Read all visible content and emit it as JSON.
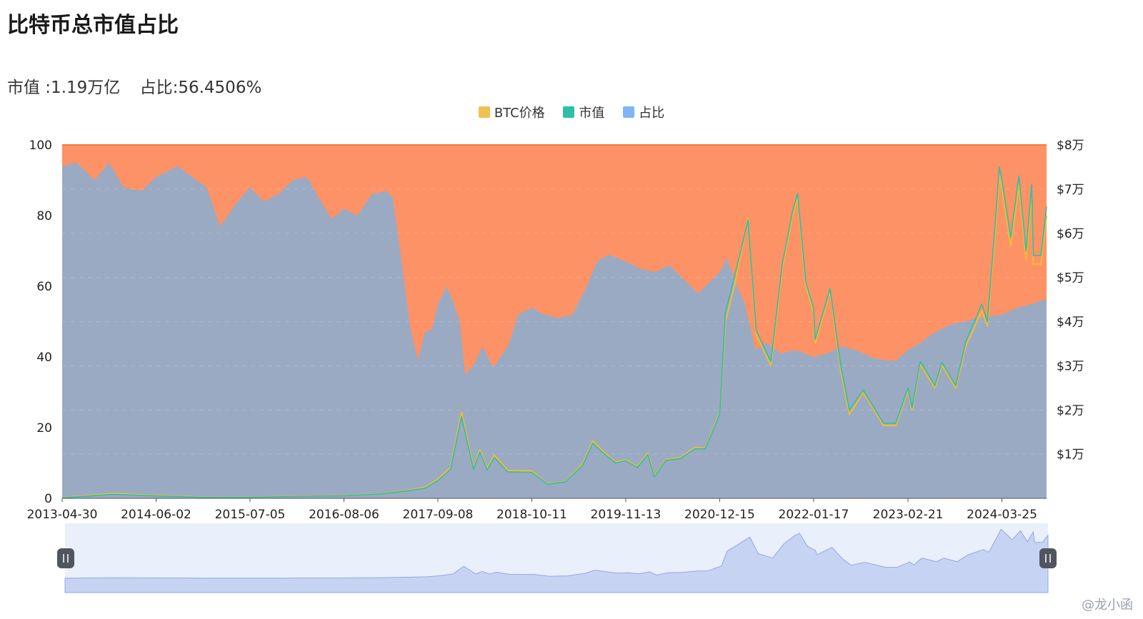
{
  "header": {
    "title": "比特币总市值占比",
    "market_cap": "市值 :1.19万亿",
    "dominance": "占比:56.4506%"
  },
  "legend": [
    {
      "label": "BTC价格",
      "color": "#f0c050"
    },
    {
      "label": "市值",
      "color": "#2fbfa8"
    },
    {
      "label": "占比",
      "color": "#7eb6f5"
    }
  ],
  "colors": {
    "dominance_fill": "#9aaac2",
    "remainder_fill": "#fd9266",
    "top_line": "#f47a3f",
    "price": "#f0b93a",
    "market_cap": "#2fbfa8",
    "slider_bg": "#e9effb",
    "slider_fill": "#c7d3f3",
    "slider_line": "#93a8e3"
  },
  "chart_data": {
    "type": "area",
    "x_ticks": [
      "2013-04-30",
      "2014-06-02",
      "2015-07-05",
      "2016-08-06",
      "2017-09-08",
      "2018-10-11",
      "2019-11-13",
      "2020-12-15",
      "2022-01-17",
      "2023-02-21",
      "2024-03-25"
    ],
    "y_left_ticks": [
      "0",
      "20",
      "40",
      "60",
      "80",
      "100"
    ],
    "y_left_range": [
      0,
      100
    ],
    "y_right_ticks": [
      "$1万",
      "$2万",
      "$3万",
      "$4万",
      "$5万",
      "$6万",
      "$7万",
      "$8万"
    ],
    "y_right_range": [
      0,
      80000
    ],
    "series": [
      {
        "name": "占比",
        "axis": "left",
        "points": [
          [
            "2013-04-30",
            94
          ],
          [
            "2013-07-01",
            95
          ],
          [
            "2013-09-15",
            90
          ],
          [
            "2013-11-15",
            95
          ],
          [
            "2014-01-15",
            88
          ],
          [
            "2014-04-01",
            87
          ],
          [
            "2014-06-02",
            91
          ],
          [
            "2014-09-01",
            94
          ],
          [
            "2014-11-01",
            91
          ],
          [
            "2015-01-01",
            88
          ],
          [
            "2015-03-01",
            77
          ],
          [
            "2015-05-01",
            83
          ],
          [
            "2015-07-05",
            88
          ],
          [
            "2015-09-01",
            84
          ],
          [
            "2015-11-01",
            86
          ],
          [
            "2016-01-01",
            90
          ],
          [
            "2016-03-01",
            91
          ],
          [
            "2016-05-01",
            84
          ],
          [
            "2016-06-15",
            79
          ],
          [
            "2016-08-06",
            82
          ],
          [
            "2016-10-01",
            80
          ],
          [
            "2016-12-01",
            86
          ],
          [
            "2017-02-01",
            87
          ],
          [
            "2017-03-01",
            85
          ],
          [
            "2017-04-01",
            70
          ],
          [
            "2017-05-15",
            48
          ],
          [
            "2017-06-15",
            39
          ],
          [
            "2017-07-15",
            47
          ],
          [
            "2017-08-15",
            48
          ],
          [
            "2017-09-08",
            55
          ],
          [
            "2017-10-15",
            60
          ],
          [
            "2017-11-15",
            55
          ],
          [
            "2017-12-10",
            50
          ],
          [
            "2018-01-01",
            35
          ],
          [
            "2018-02-10",
            38
          ],
          [
            "2018-03-15",
            43
          ],
          [
            "2018-05-01",
            37
          ],
          [
            "2018-07-01",
            43
          ],
          [
            "2018-08-15",
            52
          ],
          [
            "2018-10-11",
            54
          ],
          [
            "2018-12-01",
            52
          ],
          [
            "2019-02-01",
            51
          ],
          [
            "2019-04-01",
            52
          ],
          [
            "2019-06-01",
            60
          ],
          [
            "2019-07-15",
            67
          ],
          [
            "2019-09-01",
            69
          ],
          [
            "2019-11-13",
            67
          ],
          [
            "2020-01-15",
            65
          ],
          [
            "2020-03-15",
            64
          ],
          [
            "2020-05-15",
            66
          ],
          [
            "2020-07-15",
            62
          ],
          [
            "2020-09-15",
            58
          ],
          [
            "2020-12-15",
            64
          ],
          [
            "2021-01-15",
            68
          ],
          [
            "2021-02-15",
            62
          ],
          [
            "2021-04-01",
            55
          ],
          [
            "2021-05-15",
            42
          ],
          [
            "2021-07-01",
            44
          ],
          [
            "2021-09-01",
            41
          ],
          [
            "2021-11-01",
            42
          ],
          [
            "2022-01-17",
            40
          ],
          [
            "2022-03-15",
            41
          ],
          [
            "2022-05-15",
            43
          ],
          [
            "2022-07-15",
            42
          ],
          [
            "2022-09-15",
            40
          ],
          [
            "2022-11-15",
            39
          ],
          [
            "2023-01-01",
            39
          ],
          [
            "2023-02-21",
            42
          ],
          [
            "2023-04-15",
            44
          ],
          [
            "2023-06-15",
            47
          ],
          [
            "2023-08-15",
            49
          ],
          [
            "2023-10-15",
            50
          ],
          [
            "2023-12-15",
            51
          ],
          [
            "2024-03-25",
            52
          ],
          [
            "2024-06-01",
            54
          ],
          [
            "2024-08-01",
            55
          ],
          [
            "2024-09-30",
            56.45
          ]
        ]
      },
      {
        "name": "BTC价格",
        "axis": "right",
        "points": [
          [
            "2013-04-30",
            140
          ],
          [
            "2013-11-30",
            1100
          ],
          [
            "2014-06-02",
            650
          ],
          [
            "2015-01-15",
            210
          ],
          [
            "2015-07-05",
            260
          ],
          [
            "2016-01-01",
            430
          ],
          [
            "2016-08-06",
            580
          ],
          [
            "2017-01-01",
            1000
          ],
          [
            "2017-05-01",
            1800
          ],
          [
            "2017-07-15",
            2500
          ],
          [
            "2017-09-08",
            4300
          ],
          [
            "2017-11-01",
            7000
          ],
          [
            "2017-12-17",
            19500
          ],
          [
            "2018-02-06",
            7000
          ],
          [
            "2018-03-05",
            11000
          ],
          [
            "2018-04-05",
            6700
          ],
          [
            "2018-05-05",
            9800
          ],
          [
            "2018-07-01",
            6300
          ],
          [
            "2018-10-11",
            6200
          ],
          [
            "2018-12-15",
            3300
          ],
          [
            "2019-03-01",
            3800
          ],
          [
            "2019-05-15",
            7800
          ],
          [
            "2019-06-26",
            13000
          ],
          [
            "2019-08-15",
            10300
          ],
          [
            "2019-10-01",
            8200
          ],
          [
            "2019-11-13",
            8700
          ],
          [
            "2020-01-01",
            7200
          ],
          [
            "2020-02-15",
            10200
          ],
          [
            "2020-03-13",
            5000
          ],
          [
            "2020-05-01",
            8800
          ],
          [
            "2020-07-01",
            9200
          ],
          [
            "2020-09-01",
            11500
          ],
          [
            "2020-10-15",
            11400
          ],
          [
            "2020-12-15",
            19300
          ],
          [
            "2021-01-08",
            40000
          ],
          [
            "2021-02-15",
            48000
          ],
          [
            "2021-04-14",
            63500
          ],
          [
            "2021-05-19",
            37000
          ],
          [
            "2021-07-20",
            30000
          ],
          [
            "2021-09-06",
            52000
          ],
          [
            "2021-10-20",
            64000
          ],
          [
            "2021-11-10",
            68000
          ],
          [
            "2021-12-15",
            48000
          ],
          [
            "2022-01-17",
            42000
          ],
          [
            "2022-01-24",
            35000
          ],
          [
            "2022-03-28",
            47000
          ],
          [
            "2022-05-12",
            29000
          ],
          [
            "2022-06-18",
            19000
          ],
          [
            "2022-08-15",
            24000
          ],
          [
            "2022-11-09",
            16500
          ],
          [
            "2022-12-31",
            16500
          ],
          [
            "2023-02-21",
            24500
          ],
          [
            "2023-03-10",
            20000
          ],
          [
            "2023-04-14",
            30300
          ],
          [
            "2023-06-15",
            25000
          ],
          [
            "2023-07-15",
            30200
          ],
          [
            "2023-09-11",
            25000
          ],
          [
            "2023-10-24",
            34500
          ],
          [
            "2023-12-31",
            42500
          ],
          [
            "2024-01-23",
            39000
          ],
          [
            "2024-02-28",
            62000
          ],
          [
            "2024-03-14",
            73000
          ],
          [
            "2024-03-25",
            70000
          ],
          [
            "2024-05-01",
            57000
          ],
          [
            "2024-06-05",
            71000
          ],
          [
            "2024-07-05",
            54000
          ],
          [
            "2024-07-29",
            69000
          ],
          [
            "2024-08-05",
            53000
          ],
          [
            "2024-09-06",
            53000
          ],
          [
            "2024-09-30",
            64000
          ]
        ]
      },
      {
        "name": "市值",
        "axis": "right",
        "points": [
          [
            "2013-04-30",
            120
          ],
          [
            "2013-11-30",
            900
          ],
          [
            "2014-06-02",
            550
          ],
          [
            "2015-01-15",
            180
          ],
          [
            "2015-07-05",
            230
          ],
          [
            "2016-01-01",
            400
          ],
          [
            "2016-08-06",
            550
          ],
          [
            "2017-01-01",
            950
          ],
          [
            "2017-05-01",
            1700
          ],
          [
            "2017-07-15",
            2300
          ],
          [
            "2017-09-08",
            4000
          ],
          [
            "2017-11-01",
            6600
          ],
          [
            "2017-12-17",
            18500
          ],
          [
            "2018-02-06",
            6600
          ],
          [
            "2018-03-05",
            10500
          ],
          [
            "2018-04-05",
            6400
          ],
          [
            "2018-05-05",
            9300
          ],
          [
            "2018-07-01",
            6000
          ],
          [
            "2018-10-11",
            5900
          ],
          [
            "2018-12-15",
            3200
          ],
          [
            "2019-03-01",
            3700
          ],
          [
            "2019-05-15",
            7500
          ],
          [
            "2019-06-26",
            12500
          ],
          [
            "2019-08-15",
            10000
          ],
          [
            "2019-10-01",
            8000
          ],
          [
            "2019-11-13",
            8500
          ],
          [
            "2020-01-01",
            7000
          ],
          [
            "2020-02-15",
            9900
          ],
          [
            "2020-03-13",
            4800
          ],
          [
            "2020-05-01",
            8600
          ],
          [
            "2020-07-01",
            9000
          ],
          [
            "2020-09-01",
            11200
          ],
          [
            "2020-10-15",
            11200
          ],
          [
            "2020-12-15",
            19000
          ],
          [
            "2021-01-08",
            42000
          ],
          [
            "2021-02-15",
            50000
          ],
          [
            "2021-04-14",
            63000
          ],
          [
            "2021-05-19",
            38000
          ],
          [
            "2021-07-20",
            31000
          ],
          [
            "2021-09-06",
            53000
          ],
          [
            "2021-10-20",
            65000
          ],
          [
            "2021-11-10",
            69000
          ],
          [
            "2021-12-15",
            49000
          ],
          [
            "2022-01-17",
            43000
          ],
          [
            "2022-01-24",
            36000
          ],
          [
            "2022-03-28",
            47500
          ],
          [
            "2022-05-12",
            30000
          ],
          [
            "2022-06-18",
            20000
          ],
          [
            "2022-08-15",
            24500
          ],
          [
            "2022-11-09",
            17000
          ],
          [
            "2022-12-31",
            17000
          ],
          [
            "2023-02-21",
            25000
          ],
          [
            "2023-03-10",
            20500
          ],
          [
            "2023-04-14",
            31000
          ],
          [
            "2023-06-15",
            25500
          ],
          [
            "2023-07-15",
            30800
          ],
          [
            "2023-09-11",
            25500
          ],
          [
            "2023-10-24",
            35500
          ],
          [
            "2023-12-31",
            44000
          ],
          [
            "2024-01-23",
            40000
          ],
          [
            "2024-02-28",
            64000
          ],
          [
            "2024-03-14",
            75000
          ],
          [
            "2024-03-25",
            72000
          ],
          [
            "2024-05-01",
            59000
          ],
          [
            "2024-06-05",
            73000
          ],
          [
            "2024-07-05",
            56000
          ],
          [
            "2024-07-29",
            71000
          ],
          [
            "2024-08-05",
            55000
          ],
          [
            "2024-09-06",
            55000
          ],
          [
            "2024-09-30",
            66000
          ]
        ]
      }
    ],
    "grid": "dashed horizontal",
    "legend_position": "top-center",
    "has_zoom_slider": true
  },
  "watermark": "@龙小函"
}
